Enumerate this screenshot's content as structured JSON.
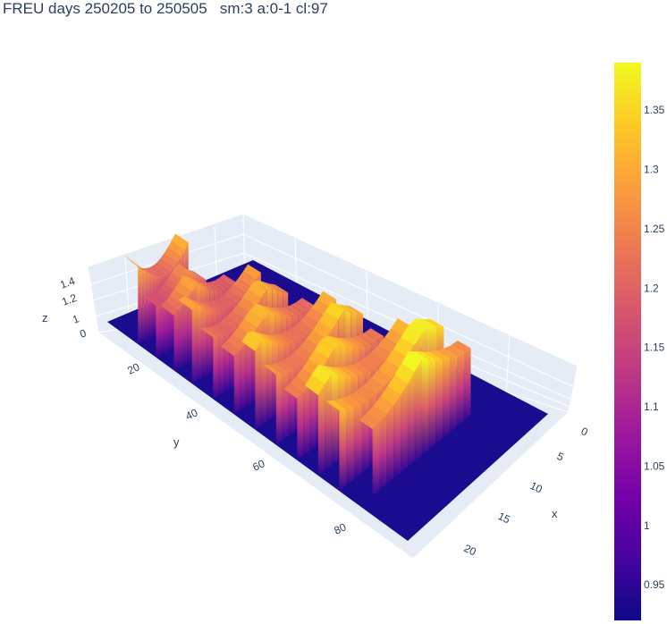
{
  "chart_data": {
    "type": "surface",
    "title": "FREU days 250205 to 250505   sm:3 a:0-1 cl:97",
    "xlabel": "x",
    "ylabel": "y",
    "zlabel": "z",
    "x_range": [
      0,
      23
    ],
    "y_range": [
      0,
      100
    ],
    "z_range": [
      0,
      1.4
    ],
    "x_ticks": [
      "0",
      "5",
      "10",
      "15",
      "20"
    ],
    "y_ticks": [
      "20",
      "40",
      "60",
      "80"
    ],
    "z_ticks": [
      "0",
      "1",
      "1.2",
      "1.4"
    ],
    "colorscale": "plasma",
    "color_range": [
      0.92,
      1.39
    ],
    "colorbar_ticks": [
      "0.95",
      "1",
      "1.05",
      "1.1",
      "1.15",
      "1.2",
      "1.25",
      "1.3",
      "1.35"
    ],
    "grid": true,
    "ridges": [
      {
        "y": 8,
        "x_from": 0,
        "x_to": 8,
        "peak": 1.31
      },
      {
        "y": 14,
        "x_from": 0,
        "x_to": 8,
        "peak": 1.26
      },
      {
        "y": 20,
        "x_from": 0,
        "x_to": 10,
        "peak": 1.29
      },
      {
        "y": 26,
        "x_from": 0,
        "x_to": 11,
        "peak": 1.3
      },
      {
        "y": 33,
        "x_from": 0,
        "x_to": 12,
        "peak": 1.31
      },
      {
        "y": 40,
        "x_from": 0,
        "x_to": 13,
        "peak": 1.32
      },
      {
        "y": 47,
        "x_from": 0,
        "x_to": 13,
        "peak": 1.34
      },
      {
        "y": 54,
        "x_from": 0,
        "x_to": 14,
        "peak": 1.35
      },
      {
        "y": 61,
        "x_from": 0,
        "x_to": 14,
        "peak": 1.35
      },
      {
        "y": 68,
        "x_from": 0,
        "x_to": 15,
        "peak": 1.37
      },
      {
        "y": 75,
        "x_from": 0,
        "x_to": 17,
        "peak": 1.39
      },
      {
        "y": 82,
        "x_from": 2,
        "x_to": 18,
        "peak": 1.39
      }
    ]
  }
}
